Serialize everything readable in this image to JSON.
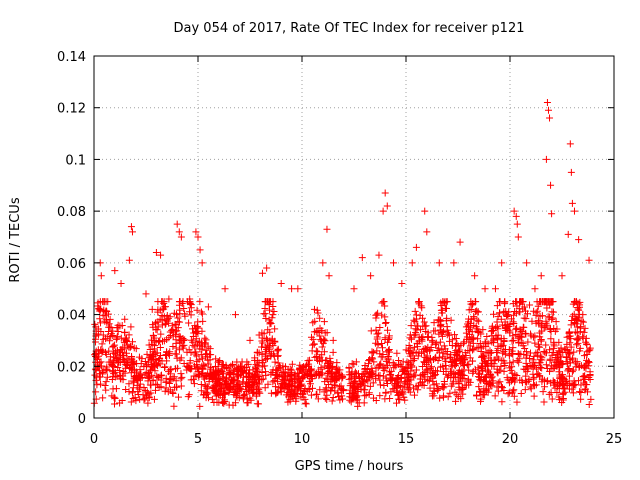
{
  "chart_data": {
    "type": "scatter",
    "title": "Day 054 of 2017, Rate Of TEC Index for receiver p121",
    "xlabel": "GPS time / hours",
    "ylabel": "ROTI / TECUs",
    "xlim": [
      0,
      25
    ],
    "ylim": [
      0,
      0.14
    ],
    "xticks": [
      "0",
      "5",
      "10",
      "15",
      "20",
      "25"
    ],
    "yticks": [
      "0",
      "0.02",
      "0.04",
      "0.06",
      "0.08",
      "0.1",
      "0.12",
      "0.14"
    ],
    "grid": true,
    "marker": "+",
    "color": "#ff0000",
    "series": [
      {
        "name": "ROTI",
        "points": [
          [
            0.1,
            0.025
          ],
          [
            0.3,
            0.06
          ],
          [
            0.35,
            0.055
          ],
          [
            0.5,
            0.045
          ],
          [
            0.6,
            0.038
          ],
          [
            1.0,
            0.057
          ],
          [
            1.3,
            0.052
          ],
          [
            1.7,
            0.061
          ],
          [
            1.8,
            0.074
          ],
          [
            1.85,
            0.072
          ],
          [
            2.5,
            0.048
          ],
          [
            2.8,
            0.042
          ],
          [
            3.0,
            0.064
          ],
          [
            3.2,
            0.063
          ],
          [
            3.6,
            0.046
          ],
          [
            4.0,
            0.075
          ],
          [
            4.1,
            0.072
          ],
          [
            4.2,
            0.07
          ],
          [
            4.6,
            0.046
          ],
          [
            4.9,
            0.072
          ],
          [
            5.0,
            0.07
          ],
          [
            5.1,
            0.065
          ],
          [
            5.2,
            0.06
          ],
          [
            5.5,
            0.043
          ],
          [
            6.3,
            0.05
          ],
          [
            6.8,
            0.04
          ],
          [
            7.5,
            0.03
          ],
          [
            8.1,
            0.056
          ],
          [
            8.3,
            0.058
          ],
          [
            8.6,
            0.04
          ],
          [
            9.0,
            0.052
          ],
          [
            9.5,
            0.05
          ],
          [
            9.8,
            0.05
          ],
          [
            10.6,
            0.042
          ],
          [
            11.0,
            0.06
          ],
          [
            11.2,
            0.073
          ],
          [
            11.3,
            0.055
          ],
          [
            11.5,
            0.03
          ],
          [
            12.5,
            0.05
          ],
          [
            12.9,
            0.062
          ],
          [
            13.3,
            0.055
          ],
          [
            13.7,
            0.063
          ],
          [
            13.9,
            0.08
          ],
          [
            14.0,
            0.087
          ],
          [
            14.1,
            0.082
          ],
          [
            14.4,
            0.06
          ],
          [
            14.8,
            0.052
          ],
          [
            15.3,
            0.06
          ],
          [
            15.5,
            0.066
          ],
          [
            15.9,
            0.08
          ],
          [
            16.0,
            0.072
          ],
          [
            16.6,
            0.06
          ],
          [
            17.3,
            0.06
          ],
          [
            17.6,
            0.068
          ],
          [
            18.3,
            0.055
          ],
          [
            18.8,
            0.05
          ],
          [
            19.3,
            0.05
          ],
          [
            19.6,
            0.06
          ],
          [
            19.9,
            0.04
          ],
          [
            20.2,
            0.08
          ],
          [
            20.3,
            0.078
          ],
          [
            20.35,
            0.075
          ],
          [
            20.4,
            0.07
          ],
          [
            20.8,
            0.06
          ],
          [
            21.2,
            0.05
          ],
          [
            21.5,
            0.055
          ],
          [
            21.75,
            0.1
          ],
          [
            21.8,
            0.122
          ],
          [
            21.85,
            0.119
          ],
          [
            21.9,
            0.116
          ],
          [
            21.95,
            0.09
          ],
          [
            22.0,
            0.079
          ],
          [
            22.5,
            0.055
          ],
          [
            22.8,
            0.071
          ],
          [
            22.9,
            0.106
          ],
          [
            22.95,
            0.095
          ],
          [
            23.0,
            0.083
          ],
          [
            23.1,
            0.08
          ],
          [
            23.3,
            0.069
          ],
          [
            23.5,
            0.04
          ],
          [
            23.8,
            0.061
          ]
        ]
      }
    ]
  }
}
